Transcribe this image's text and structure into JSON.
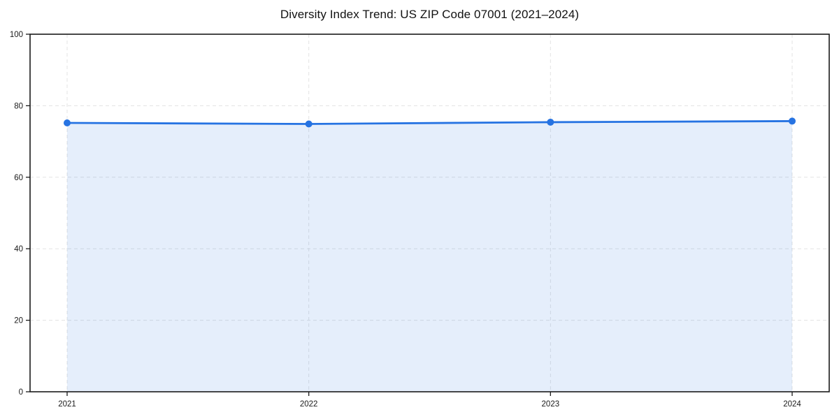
{
  "chart_data": {
    "type": "area",
    "title": "Diversity Index Trend: US ZIP Code 07001 (2021–2024)",
    "x": [
      2021,
      2022,
      2023,
      2024
    ],
    "xtick_labels": [
      "2021",
      "2022",
      "2023",
      "2024"
    ],
    "series": [
      {
        "name": "Diversity Index",
        "values": [
          75.2,
          74.9,
          75.4,
          75.7
        ]
      }
    ],
    "xlabel": "",
    "ylabel": "",
    "ylim": [
      0,
      100
    ],
    "yticks": [
      0,
      20,
      40,
      60,
      80,
      100
    ],
    "grid": "dashed, horizontal at y-ticks and vertical at x-ticks",
    "legend": "none",
    "marker": "circle",
    "line_color": "#2673e2",
    "fill_color": "rgba(38,115,226,0.12)",
    "grid_color": "#e3e3e3",
    "axis_color": "#1a1a1a",
    "tick_label_color": "#1a1a1a",
    "plot_bg": "#ffffff"
  }
}
